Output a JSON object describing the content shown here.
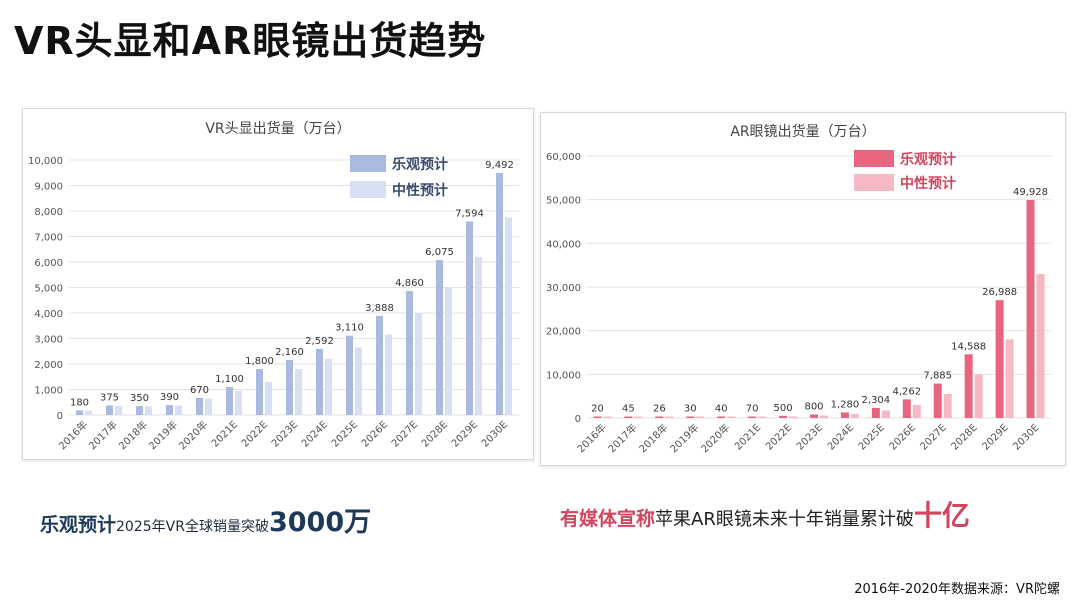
{
  "page": {
    "title": "VR头显和AR眼镜出货趋势",
    "source": "2016年-2020年数据来源：VR陀螺"
  },
  "captions": {
    "vr": {
      "highlight": "乐观预计",
      "middle": "2025年VR全球销量突破",
      "emphasis": "3000万"
    },
    "ar": {
      "highlight": "有媒体宣称",
      "middle": "苹果AR眼镜未来十年销量累计破",
      "emphasis": "十亿"
    }
  },
  "colors": {
    "vr_optimistic": "#a9b9e0",
    "vr_neutral": "#d7dff3",
    "ar_optimistic": "#e8657f",
    "ar_neutral": "#f5b9c4",
    "page_title": "#111111"
  },
  "chart_data": [
    {
      "id": "vr",
      "type": "bar",
      "title": "VR头显出货量（万台）",
      "categories": [
        "2016年",
        "2017年",
        "2018年",
        "2019年",
        "2020年",
        "2021E",
        "2022E",
        "2023E",
        "2024E",
        "2025E",
        "2026E",
        "2027E",
        "2028E",
        "2029E",
        "2030E"
      ],
      "series": [
        {
          "name": "乐观预计",
          "values": [
            180,
            375,
            350,
            390,
            670,
            1100,
            1800,
            2160,
            2592,
            3110,
            3888,
            4860,
            6075,
            7594,
            9492
          ]
        },
        {
          "name": "中性预计",
          "values": [
            170,
            355,
            330,
            370,
            640,
            950,
            1300,
            1800,
            2200,
            2650,
            3150,
            4000,
            5000,
            6200,
            7750
          ]
        }
      ],
      "data_labels": [
        "180",
        "375",
        "350",
        "390",
        "670",
        "1,100",
        "1,800",
        "2,160",
        "2,592",
        "3,110",
        "3,888",
        "4,860",
        "6,075",
        "7,594",
        "9,492"
      ],
      "yticks": [
        0,
        1000,
        2000,
        3000,
        4000,
        5000,
        6000,
        7000,
        8000,
        9000,
        10000
      ],
      "ylim": [
        0,
        10000
      ],
      "grid": true,
      "legend": "top-right"
    },
    {
      "id": "ar",
      "type": "bar",
      "title": "AR眼镜出货量（万台）",
      "categories": [
        "2016年",
        "2017年",
        "2018年",
        "2019年",
        "2020年",
        "2021E",
        "2022E",
        "2023E",
        "2024E",
        "2025E",
        "2026E",
        "2027E",
        "2028E",
        "2029E",
        "2030E"
      ],
      "series": [
        {
          "name": "乐观预计",
          "values": [
            20,
            45,
            26,
            30,
            40,
            70,
            500,
            800,
            1280,
            2304,
            4262,
            7885,
            14588,
            26988,
            49928
          ]
        },
        {
          "name": "中性预计",
          "values": [
            18,
            40,
            22,
            26,
            35,
            60,
            350,
            560,
            900,
            1700,
            3000,
            5500,
            10000,
            18000,
            33000
          ]
        }
      ],
      "data_labels": [
        "20",
        "45",
        "26",
        "30",
        "40",
        "70",
        "500",
        "800",
        "1,280",
        "2,304",
        "4,262",
        "7,885",
        "14,588",
        "26,988",
        "49,928"
      ],
      "yticks": [
        0,
        10000,
        20000,
        30000,
        40000,
        50000,
        60000
      ],
      "ylim": [
        0,
        60000
      ],
      "grid": true,
      "legend": "top-right"
    }
  ]
}
